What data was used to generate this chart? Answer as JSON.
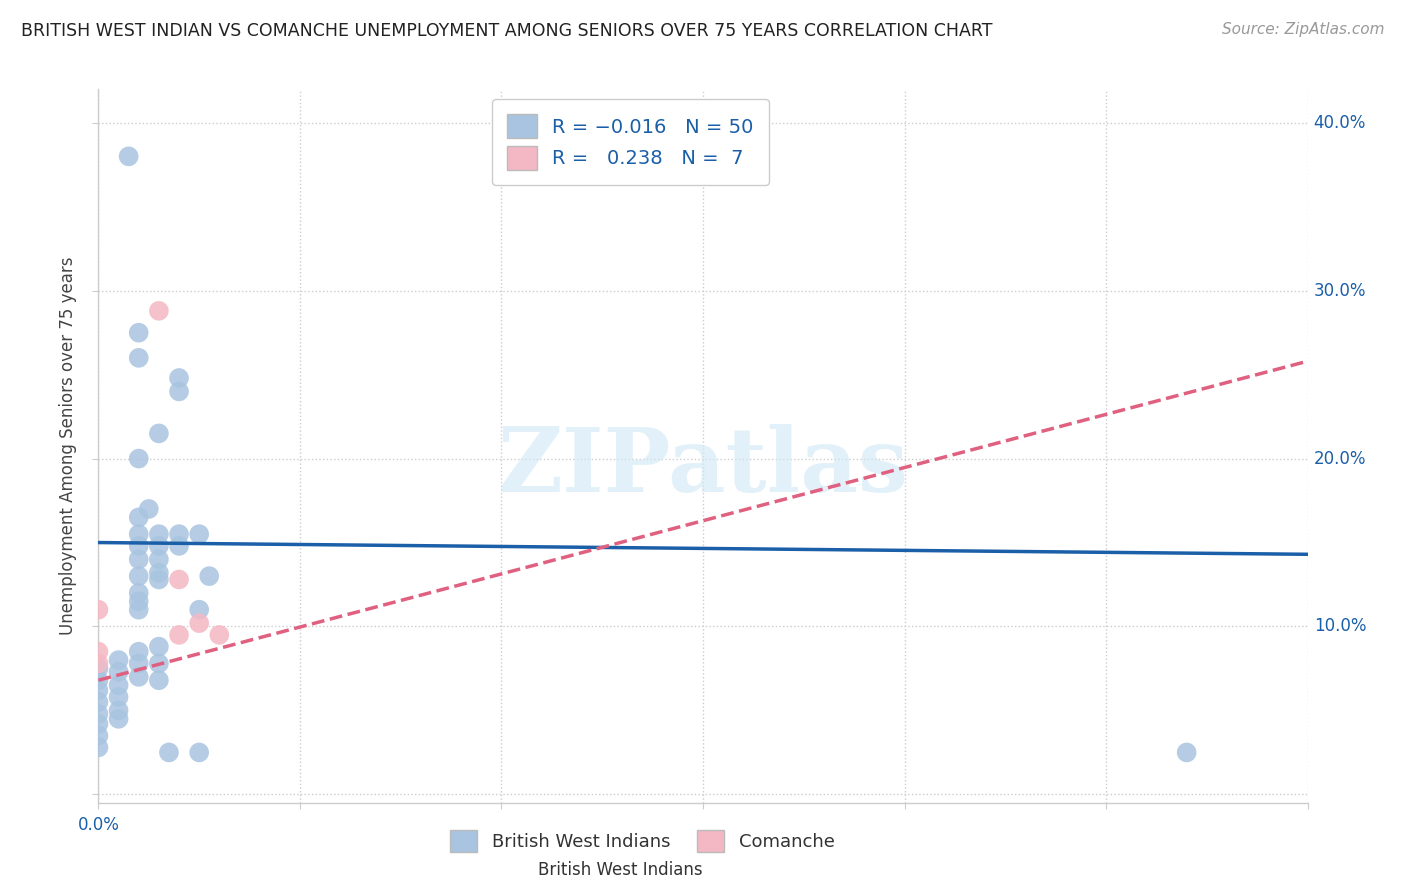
{
  "title": "BRITISH WEST INDIAN VS COMANCHE UNEMPLOYMENT AMONG SENIORS OVER 75 YEARS CORRELATION CHART",
  "source": "Source: ZipAtlas.com",
  "ylabel": "Unemployment Among Seniors over 75 years",
  "xlim": [
    0.0,
    0.06
  ],
  "ylim": [
    -0.005,
    0.42
  ],
  "blue_color": "#a8c4e0",
  "pink_color": "#f4b8c4",
  "blue_line_color": "#1a5fa8",
  "pink_line_color": "#e06080",
  "watermark_text": "ZIPatlas",
  "blue_scatter": [
    [
      0.0,
      0.075
    ],
    [
      0.0,
      0.068
    ],
    [
      0.0,
      0.062
    ],
    [
      0.0,
      0.055
    ],
    [
      0.0,
      0.048
    ],
    [
      0.0,
      0.042
    ],
    [
      0.0,
      0.035
    ],
    [
      0.0,
      0.028
    ],
    [
      0.001,
      0.08
    ],
    [
      0.001,
      0.073
    ],
    [
      0.001,
      0.065
    ],
    [
      0.001,
      0.058
    ],
    [
      0.001,
      0.05
    ],
    [
      0.001,
      0.045
    ],
    [
      0.0015,
      0.38
    ],
    [
      0.002,
      0.275
    ],
    [
      0.002,
      0.26
    ],
    [
      0.002,
      0.2
    ],
    [
      0.002,
      0.165
    ],
    [
      0.002,
      0.155
    ],
    [
      0.002,
      0.148
    ],
    [
      0.002,
      0.14
    ],
    [
      0.002,
      0.13
    ],
    [
      0.002,
      0.12
    ],
    [
      0.002,
      0.115
    ],
    [
      0.002,
      0.11
    ],
    [
      0.002,
      0.085
    ],
    [
      0.002,
      0.078
    ],
    [
      0.002,
      0.07
    ],
    [
      0.0025,
      0.17
    ],
    [
      0.003,
      0.215
    ],
    [
      0.003,
      0.155
    ],
    [
      0.003,
      0.148
    ],
    [
      0.003,
      0.14
    ],
    [
      0.003,
      0.132
    ],
    [
      0.003,
      0.128
    ],
    [
      0.003,
      0.088
    ],
    [
      0.003,
      0.078
    ],
    [
      0.003,
      0.068
    ],
    [
      0.0035,
      0.025
    ],
    [
      0.004,
      0.248
    ],
    [
      0.004,
      0.24
    ],
    [
      0.004,
      0.155
    ],
    [
      0.004,
      0.148
    ],
    [
      0.005,
      0.155
    ],
    [
      0.005,
      0.11
    ],
    [
      0.0055,
      0.13
    ],
    [
      0.005,
      0.025
    ],
    [
      0.054,
      0.025
    ]
  ],
  "pink_scatter": [
    [
      0.0,
      0.11
    ],
    [
      0.0,
      0.085
    ],
    [
      0.0,
      0.078
    ],
    [
      0.003,
      0.288
    ],
    [
      0.004,
      0.128
    ],
    [
      0.004,
      0.095
    ],
    [
      0.005,
      0.102
    ],
    [
      0.006,
      0.095
    ]
  ],
  "blue_trendline": [
    [
      0.0,
      0.15
    ],
    [
      0.06,
      0.143
    ]
  ],
  "pink_trendline": [
    [
      0.0,
      0.068
    ],
    [
      0.06,
      0.258
    ]
  ]
}
